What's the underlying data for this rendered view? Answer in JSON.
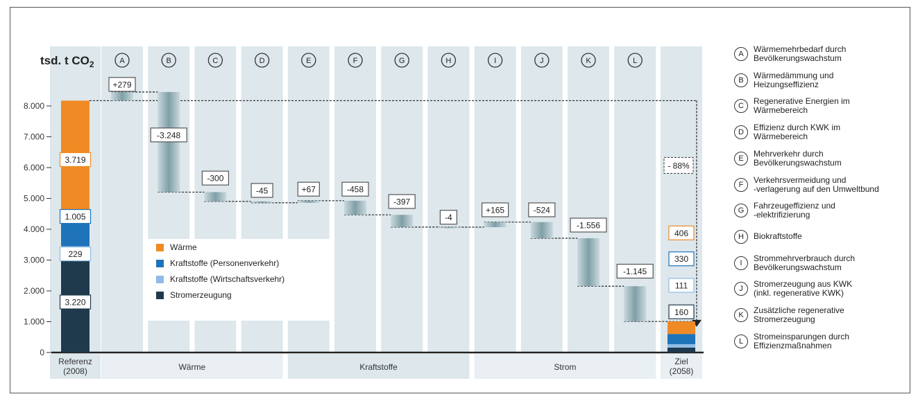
{
  "colors": {
    "waerme": "#f08a24",
    "kraft_personen": "#1e73b9",
    "kraft_wirtschaft": "#8fbce6",
    "strom": "#1f3a4d",
    "step": "#9bb8be",
    "band": "#dde7ec"
  },
  "chart_data": {
    "type": "bar",
    "subtype": "waterfall",
    "ylabel": "tsd. t CO",
    "ylabel_sub": "2",
    "ylim": [
      0,
      8600
    ],
    "y_ticks": [
      "0",
      "1.000",
      "2.000",
      "3.000",
      "4.000",
      "5.000",
      "6.000",
      "7.000",
      "8.000"
    ],
    "y_tick_values": [
      0,
      1000,
      2000,
      3000,
      4000,
      5000,
      6000,
      7000,
      8000
    ],
    "grid": false,
    "reference": {
      "label_line1": "Referenz",
      "label_line2": "(2008)",
      "segments": [
        {
          "series": "Stromerzeugung",
          "value": 3220,
          "label": "3.220"
        },
        {
          "series": "Kraftstoffe (Wirtschaftsverkehr)",
          "value": 229,
          "label": "229"
        },
        {
          "series": "Kraftstoffe (Personenverkehr)",
          "value": 1005,
          "label": "1.005"
        },
        {
          "series": "Wärme",
          "value": 3719,
          "label": "3.719"
        }
      ]
    },
    "steps": [
      {
        "letter": "A",
        "start": 8173,
        "end": 8452,
        "label": "+279"
      },
      {
        "letter": "B",
        "start": 8452,
        "end": 5204,
        "label": "-3.248"
      },
      {
        "letter": "C",
        "start": 5204,
        "end": 4904,
        "label": "-300"
      },
      {
        "letter": "D",
        "start": 4904,
        "end": 4859,
        "label": "-45"
      },
      {
        "letter": "E",
        "start": 4859,
        "end": 4926,
        "label": "+67"
      },
      {
        "letter": "F",
        "start": 4926,
        "end": 4468,
        "label": "-458"
      },
      {
        "letter": "G",
        "start": 4468,
        "end": 4071,
        "label": "-397"
      },
      {
        "letter": "H",
        "start": 4071,
        "end": 4067,
        "label": "-4"
      },
      {
        "letter": "I",
        "start": 4067,
        "end": 4232,
        "label": "+165"
      },
      {
        "letter": "J",
        "start": 4232,
        "end": 3708,
        "label": "-524"
      },
      {
        "letter": "K",
        "start": 3708,
        "end": 2152,
        "label": "-1.556"
      },
      {
        "letter": "L",
        "start": 2152,
        "end": 1007,
        "label": "-1.145"
      }
    ],
    "target": {
      "label_line1": "Ziel",
      "label_line2": "(2058)",
      "percent_label": "- 88%",
      "segments": [
        {
          "series": "Stromerzeugung",
          "value": 160,
          "label": "160"
        },
        {
          "series": "Kraftstoffe (Wirtschaftsverkehr)",
          "value": 111,
          "label": "111"
        },
        {
          "series": "Kraftstoffe (Personenverkehr)",
          "value": 330,
          "label": "330"
        },
        {
          "series": "Wärme",
          "value": 406,
          "label": "406"
        }
      ]
    },
    "groups": [
      {
        "label": "Wärme",
        "letters": [
          "A",
          "B",
          "C",
          "D"
        ]
      },
      {
        "label": "Kraftstoffe",
        "letters": [
          "E",
          "F",
          "G",
          "H"
        ]
      },
      {
        "label": "Strom",
        "letters": [
          "I",
          "J",
          "K",
          "L"
        ]
      }
    ],
    "legend": [
      {
        "label": "Wärme",
        "color_key": "waerme"
      },
      {
        "label": "Kraftstoffe (Personenverkehr)",
        "color_key": "kraft_personen"
      },
      {
        "label": "Kraftstoffe (Wirtschaftsverkehr)",
        "color_key": "kraft_wirtschaft"
      },
      {
        "label": "Stromerzeugung",
        "color_key": "strom"
      }
    ],
    "legend_placement": "center-left inside plot"
  },
  "side_legend": [
    {
      "letter": "A",
      "line1": "Wärmemehrbedarf durch",
      "line2": "Bevölkerungswachstum"
    },
    {
      "letter": "B",
      "line1": "Wärmedämmung und",
      "line2": "Heizungseffizienz"
    },
    {
      "letter": "C",
      "line1": "Regenerative Energien im",
      "line2": "Wärmebereich"
    },
    {
      "letter": "D",
      "line1": "Effizienz durch KWK im",
      "line2": "Wärmebereich"
    },
    {
      "letter": "E",
      "line1": "Mehrverkehr durch",
      "line2": "Bevölkerungswachstum"
    },
    {
      "letter": "F",
      "line1": "Verkehrsvermeidung und",
      "line2": "-verlagerung auf den Umweltbund"
    },
    {
      "letter": "G",
      "line1": "Fahrzeugeffizienz und",
      "line2": "-elektrifizierung"
    },
    {
      "letter": "H",
      "line1": "Biokraftstoffe",
      "line2": ""
    },
    {
      "letter": "I",
      "line1": "Strommehrverbrauch durch",
      "line2": "Bevölkerungswachstum"
    },
    {
      "letter": "J",
      "line1": "Stromerzeugung aus KWK",
      "line2": "(inkl. regenerative KWK)"
    },
    {
      "letter": "K",
      "line1": "Zusätzliche regenerative",
      "line2": "Stromerzeugung"
    },
    {
      "letter": "L",
      "line1": "Stromeinsparungen durch",
      "line2": "Effizienzmaßnahmen"
    }
  ]
}
